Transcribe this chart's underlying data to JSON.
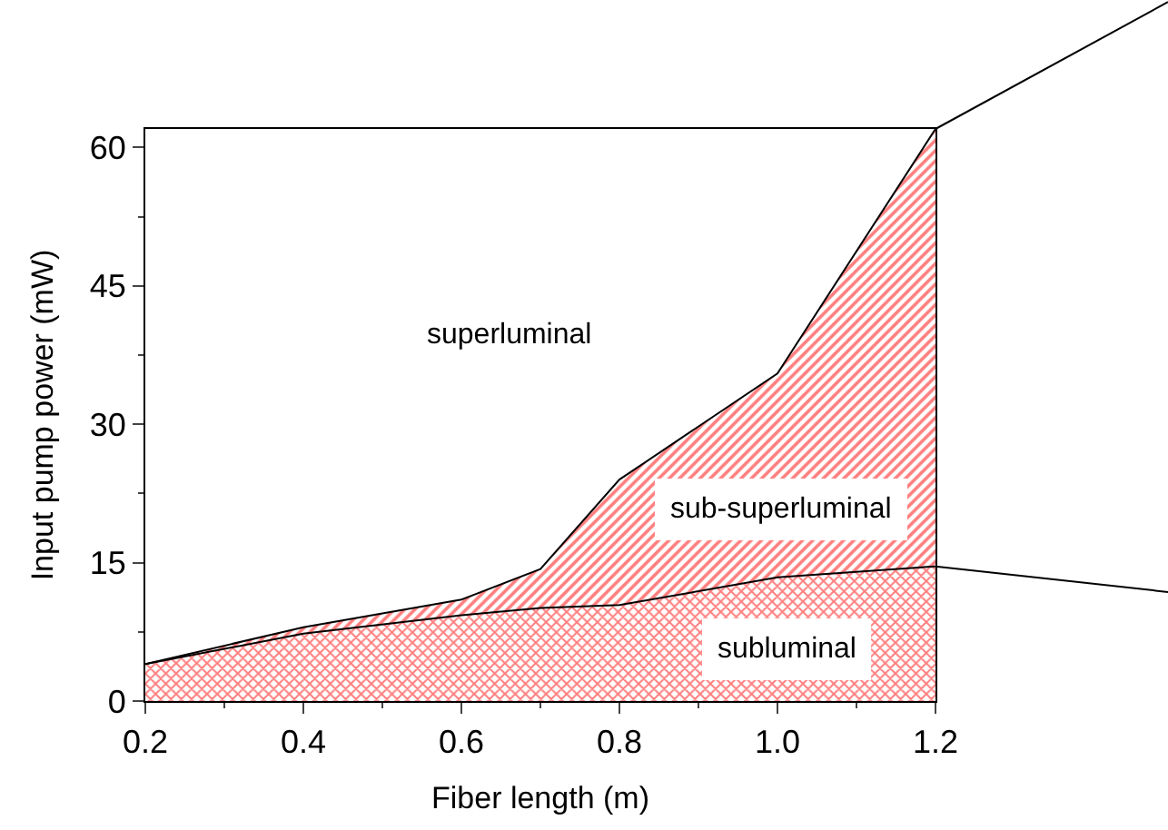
{
  "chart_data": {
    "type": "area",
    "xlabel": "Fiber length (m)",
    "ylabel": "Input pump power (mW)",
    "x": [
      0.2,
      0.4,
      0.6,
      0.7,
      0.8,
      1.0,
      1.2
    ],
    "series": [
      {
        "color": "#ff0000",
        "values": [
          4,
          7.3,
          9.3,
          10.1,
          10.4,
          13.4,
          14.6
        ]
      },
      {
        "color": "#ff0000",
        "values": [
          4,
          8,
          11,
          14.3,
          24,
          35.5,
          62
        ]
      }
    ],
    "xlim": [
      0.2,
      1.2
    ],
    "xticks": [
      {
        "value": 0.2,
        "label": "0.2"
      },
      {
        "value": 0.4,
        "label": "0.4"
      },
      {
        "value": 0.6,
        "label": "0.6"
      },
      {
        "value": 0.8,
        "label": "0.8"
      },
      {
        "value": 1.0,
        "label": "1.0"
      },
      {
        "value": 1.2,
        "label": "1.2"
      }
    ],
    "ylim": [
      0,
      62
    ],
    "yticks": [
      0,
      15,
      30,
      45,
      60
    ],
    "annotations": [
      "superluminal",
      "sub-superluminal",
      "subluminal"
    ],
    "legend": false,
    "marker": "none"
  }
}
